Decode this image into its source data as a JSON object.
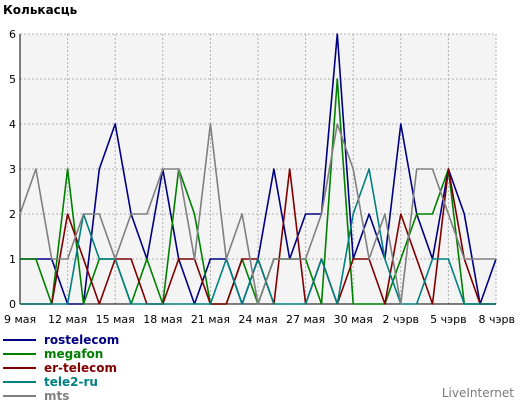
{
  "chart_data": {
    "type": "line",
    "title": "Колькасць",
    "ylim": [
      0,
      6
    ],
    "yticks": [
      "0",
      "1",
      "2",
      "3",
      "4",
      "5",
      "6"
    ],
    "xticks": [
      "9 мая",
      "12 мая",
      "15 мая",
      "18 мая",
      "21 мая",
      "24 мая",
      "27 мая",
      "30 мая",
      "2 чэрв",
      "5 чэрв",
      "8 чэрв"
    ],
    "x_count": 31,
    "grid": true,
    "legend_position": "bottom-left",
    "series": [
      {
        "name": "rostelecom",
        "color": "#000080",
        "values": [
          1,
          1,
          1,
          0,
          0,
          3,
          4,
          2,
          1,
          3,
          1,
          0,
          1,
          1,
          0,
          1,
          3,
          1,
          2,
          2,
          6,
          1,
          2,
          1,
          4,
          2,
          1,
          3,
          2,
          0,
          1
        ]
      },
      {
        "name": "megafon",
        "color": "#008000",
        "values": [
          1,
          1,
          0,
          3,
          0,
          1,
          1,
          0,
          1,
          0,
          3,
          2,
          0,
          0,
          1,
          0,
          1,
          1,
          1,
          0,
          5,
          0,
          0,
          0,
          1,
          2,
          2,
          3,
          0,
          0,
          0
        ]
      },
      {
        "name": "er-telecom",
        "color": "#800000",
        "values": [
          0,
          0,
          0,
          2,
          1,
          0,
          1,
          1,
          0,
          0,
          1,
          1,
          0,
          0,
          1,
          1,
          0,
          3,
          0,
          1,
          0,
          1,
          1,
          0,
          2,
          1,
          0,
          3,
          1,
          0,
          0
        ]
      },
      {
        "name": "tele2-ru",
        "color": "#008080",
        "values": [
          0,
          0,
          0,
          0,
          2,
          1,
          1,
          0,
          0,
          0,
          0,
          0,
          0,
          1,
          0,
          1,
          0,
          0,
          0,
          1,
          0,
          2,
          3,
          1,
          0,
          0,
          1,
          1,
          0,
          0,
          0
        ]
      },
      {
        "name": "mts",
        "color": "#808080",
        "values": [
          2,
          3,
          1,
          1,
          2,
          2,
          1,
          2,
          2,
          3,
          3,
          1,
          4,
          1,
          2,
          0,
          1,
          1,
          1,
          2,
          4,
          3,
          1,
          2,
          0,
          3,
          3,
          2,
          1,
          1,
          1
        ]
      }
    ]
  },
  "brand": "LiveInternet"
}
